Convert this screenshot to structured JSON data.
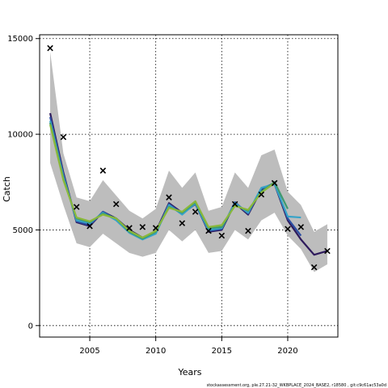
{
  "chart_data": {
    "type": "line",
    "xlabel": "Years",
    "ylabel": "Catch",
    "xlim": [
      2001.2,
      2023.8
    ],
    "ylim": [
      -600,
      15200
    ],
    "x_ticks": [
      2005,
      2010,
      2015,
      2020
    ],
    "x_tick_labels": [
      "2005",
      "2010",
      "2015",
      "2020"
    ],
    "y_ticks": [
      0,
      5000,
      10000,
      15000
    ],
    "y_tick_labels": [
      "0",
      "5000",
      "10000",
      "15000"
    ],
    "grid": true,
    "footnote": "stockassessment.org, ple.27.21-32_WKBPLACE_2024_BASE2, r18580 , git:c9c61ac53a0d",
    "confidence_band": {
      "x": [
        2002,
        2003,
        2004,
        2005,
        2006,
        2007,
        2008,
        2009,
        2010,
        2011,
        2012,
        2013,
        2014,
        2015,
        2016,
        2017,
        2018,
        2019,
        2020,
        2021,
        2022,
        2023
      ],
      "upper": [
        14300,
        9000,
        6700,
        6500,
        7600,
        6800,
        6000,
        5600,
        6100,
        8100,
        7200,
        8000,
        6000,
        6200,
        8000,
        7200,
        8900,
        9200,
        7000,
        6300,
        4900,
        5300
      ],
      "lower": [
        8500,
        6300,
        4300,
        4100,
        4800,
        4300,
        3800,
        3600,
        3800,
        5000,
        4400,
        5000,
        3800,
        3900,
        5000,
        4500,
        5500,
        5900,
        4700,
        4000,
        2800,
        3200
      ]
    },
    "observed": {
      "marker": "x",
      "x": [
        2002,
        2003,
        2004,
        2005,
        2006,
        2007,
        2008,
        2009,
        2010,
        2011,
        2012,
        2013,
        2014,
        2015,
        2016,
        2017,
        2018,
        2019,
        2020,
        2021,
        2022,
        2023
      ],
      "y": [
        14500,
        9850,
        6200,
        5200,
        8100,
        6350,
        5100,
        5150,
        5100,
        6700,
        5350,
        5950,
        4950,
        4700,
        6350,
        4950,
        6850,
        7450,
        5050,
        5150,
        3050,
        3900
      ]
    },
    "series": [
      {
        "color": "#2e1a5c",
        "x": [
          2002,
          2003,
          2004,
          2005,
          2006,
          2007,
          2008,
          2009,
          2010,
          2011,
          2012,
          2013,
          2014,
          2015,
          2016,
          2017,
          2018,
          2019,
          2020,
          2021,
          2022,
          2023
        ],
        "y": [
          11100,
          8000,
          5400,
          5200,
          5950,
          5600,
          5000,
          4600,
          4900,
          6400,
          5900,
          6400,
          4900,
          5000,
          6400,
          5800,
          7100,
          7400,
          5500,
          4500,
          3700,
          3900
        ]
      },
      {
        "color": "#2c4fa3",
        "x": [
          2002,
          2003,
          2004,
          2005,
          2006,
          2007,
          2008,
          2009,
          2010,
          2011,
          2012,
          2013,
          2014,
          2015,
          2016,
          2017,
          2018,
          2019,
          2020,
          2021
        ],
        "y": [
          10900,
          7900,
          5450,
          5250,
          5950,
          5550,
          4900,
          4550,
          4850,
          6350,
          5850,
          6350,
          4950,
          5050,
          6450,
          5850,
          7150,
          7450,
          5600,
          4700
        ]
      },
      {
        "color": "#36a3c8",
        "x": [
          2002,
          2003,
          2004,
          2005,
          2006,
          2007,
          2008,
          2009,
          2010,
          2011,
          2012,
          2013,
          2014,
          2015,
          2016,
          2017,
          2018,
          2019,
          2020,
          2021
        ],
        "y": [
          10700,
          7800,
          5500,
          5350,
          5900,
          5500,
          4850,
          4500,
          4800,
          6300,
          5800,
          6400,
          5000,
          5100,
          6400,
          5900,
          7200,
          7400,
          5700,
          5650
        ]
      },
      {
        "color": "#3f9a6e",
        "x": [
          2002,
          2003,
          2004,
          2005,
          2006,
          2007,
          2008,
          2009,
          2010,
          2011,
          2012,
          2013,
          2014,
          2015,
          2016,
          2017,
          2018,
          2019,
          2020
        ],
        "y": [
          10600,
          7700,
          5600,
          5400,
          5850,
          5600,
          4900,
          4550,
          4900,
          6200,
          5900,
          6450,
          5100,
          5150,
          6300,
          6000,
          7000,
          7500,
          6100
        ]
      },
      {
        "color": "#8ab83a",
        "x": [
          2002,
          2003,
          2004,
          2005,
          2006,
          2007,
          2008,
          2009,
          2010,
          2011,
          2012,
          2013,
          2014,
          2015,
          2016,
          2017,
          2018,
          2019
        ],
        "y": [
          10500,
          7600,
          5650,
          5450,
          5800,
          5600,
          4950,
          4600,
          4950,
          6150,
          5950,
          6500,
          5150,
          5250,
          6250,
          6050,
          6950,
          7450
        ]
      }
    ]
  }
}
